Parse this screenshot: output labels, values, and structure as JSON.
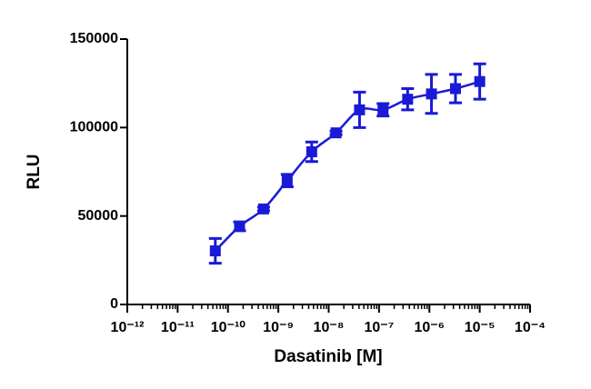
{
  "chart_data": {
    "type": "line",
    "xlabel": "Dasatinib [M]",
    "ylabel": "RLU",
    "xscale": "log",
    "series": [
      {
        "color": "#1a1ad6",
        "x": [
          5.6e-11,
          1.7e-10,
          5.1e-10,
          1.5e-09,
          4.6e-09,
          1.4e-08,
          4.1e-08,
          1.2e-07,
          3.7e-07,
          1.1e-06,
          3.3e-06,
          1e-05
        ],
        "values": [
          30300,
          44200,
          54000,
          70000,
          86300,
          97000,
          110000,
          110000,
          116000,
          119000,
          122000,
          126000
        ],
        "errors": [
          7000,
          2500,
          1000,
          3500,
          5500,
          1000,
          10000,
          3500,
          6000,
          11000,
          8000,
          10000
        ]
      }
    ],
    "xlim": [
      1e-12,
      0.0001
    ],
    "xticks": [
      {
        "value": 1e-12,
        "label": "10⁻¹²"
      },
      {
        "value": 1e-11,
        "label": "10⁻¹¹"
      },
      {
        "value": 1e-10,
        "label": "10⁻¹⁰"
      },
      {
        "value": 1e-09,
        "label": "10⁻⁹"
      },
      {
        "value": 1e-08,
        "label": "10⁻⁸"
      },
      {
        "value": 1e-07,
        "label": "10⁻⁷"
      },
      {
        "value": 1e-06,
        "label": "10⁻⁶"
      },
      {
        "value": 1e-05,
        "label": "10⁻⁵"
      },
      {
        "value": 0.0001,
        "label": "10⁻⁴"
      }
    ],
    "ylim": [
      0,
      150000
    ],
    "yticks": [
      0,
      50000,
      100000,
      150000
    ]
  }
}
